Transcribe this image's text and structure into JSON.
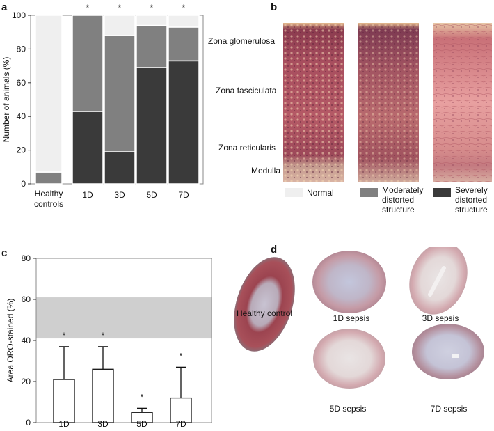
{
  "panels": {
    "a": {
      "letter": "a",
      "chart_data": {
        "type": "bar",
        "stacked": true,
        "ylabel": "Number of animals (%)",
        "ylim": [
          0,
          100
        ],
        "yticks": [
          0,
          20,
          40,
          60,
          80,
          100
        ],
        "categories": [
          "Healthy\ncontrols",
          "1D",
          "3D",
          "5D",
          "7D"
        ],
        "category_labels": [
          "Healthy",
          "controls",
          "1D",
          "3D",
          "5D",
          "7D"
        ],
        "significance": [
          "",
          "*",
          "*",
          "*",
          "*"
        ],
        "series": [
          {
            "name": "Severely distorted structure",
            "values": [
              0,
              43,
              19,
              69,
              73
            ],
            "color": "#3a3a3a"
          },
          {
            "name": "Moderately distorted structure",
            "values": [
              7,
              57,
              69,
              25,
              20
            ],
            "color": "#808080"
          },
          {
            "name": "Normal",
            "values": [
              93,
              0,
              12,
              6,
              7
            ],
            "color": "#efefef"
          }
        ]
      }
    },
    "b": {
      "letter": "b",
      "zones": [
        "Zona glomerulosa",
        "Zona fasciculata",
        "Zona reticularis",
        "Medulla"
      ],
      "legend": [
        {
          "label": "Normal",
          "color": "#efefef"
        },
        {
          "label": "Moderately\ndistorted\nstructure",
          "color": "#808080"
        },
        {
          "label": "Severely\ndistorted\nstructure",
          "color": "#3a3a3a"
        }
      ]
    },
    "c": {
      "letter": "c",
      "chart_data": {
        "type": "bar",
        "ylabel": "Area ORO-stained (%)",
        "ylim": [
          0,
          80
        ],
        "yticks": [
          0,
          20,
          40,
          60,
          80
        ],
        "categories": [
          "1D",
          "3D",
          "5D",
          "7D"
        ],
        "values": [
          21,
          26,
          5,
          12
        ],
        "errors": [
          16,
          11,
          2,
          15
        ],
        "significance": [
          "*",
          "*",
          "*",
          "*"
        ],
        "reference_band": [
          41,
          61
        ],
        "band_color": "#cfcfcf"
      }
    },
    "d": {
      "letter": "d",
      "labels": [
        "Healthy control",
        "1D sepsis",
        "3D sepsis",
        "5D sepsis",
        "7D sepsis"
      ]
    }
  }
}
